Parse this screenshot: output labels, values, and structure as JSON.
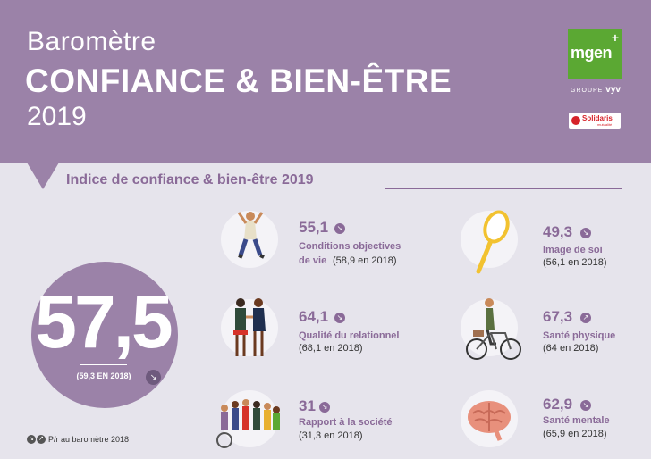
{
  "header": {
    "title_line1": "Baromètre",
    "title_line2": "CONFIANCE & BIEN-ÊTRE",
    "title_line3": "2019",
    "bg_color": "#9b82a8"
  },
  "logos": {
    "mgen": "mgen",
    "groupe": "GROUPE",
    "vyv": "vyv",
    "solidaris": "Solidaris",
    "solidaris_sub": "mutualité"
  },
  "section_title": "Indice de confiance & bien-être 2019",
  "main_index": {
    "score": "57,5",
    "previous": "(59,3 EN 2018)",
    "trend": "down"
  },
  "indicators": [
    {
      "score": "55,1",
      "label_line1": "Conditions objectives",
      "label_line2": "de vie",
      "previous_inline": "(58,9 en 2018)",
      "trend": "down",
      "icon": "jumping-person-icon"
    },
    {
      "score": "64,1",
      "label_line1": "Qualité du relationnel",
      "label_line2": "",
      "previous": "(68,1 en 2018)",
      "trend": "down",
      "icon": "handshake-people-icon"
    },
    {
      "score": "31",
      "label_line1": "Rapport à la société",
      "label_line2": "",
      "previous": "(31,3 en 2018)",
      "trend": "down",
      "icon": "crowd-icon"
    },
    {
      "score": "49,3",
      "label_line1": "Image de soi",
      "label_line2": "",
      "previous": "(56,1 en 2018)",
      "trend": "down",
      "icon": "mirror-icon"
    },
    {
      "score": "67,3",
      "label_line1": "Santé physique",
      "label_line2": "",
      "previous": "(64 en 2018)",
      "trend": "up",
      "icon": "bicycle-icon"
    },
    {
      "score": "62,9",
      "label_line1": "Santé mentale",
      "label_line2": "",
      "previous": "(65,9 en 2018)",
      "trend": "down",
      "icon": "brain-icon"
    }
  ],
  "footnote": "P/r au baromètre 2018"
}
